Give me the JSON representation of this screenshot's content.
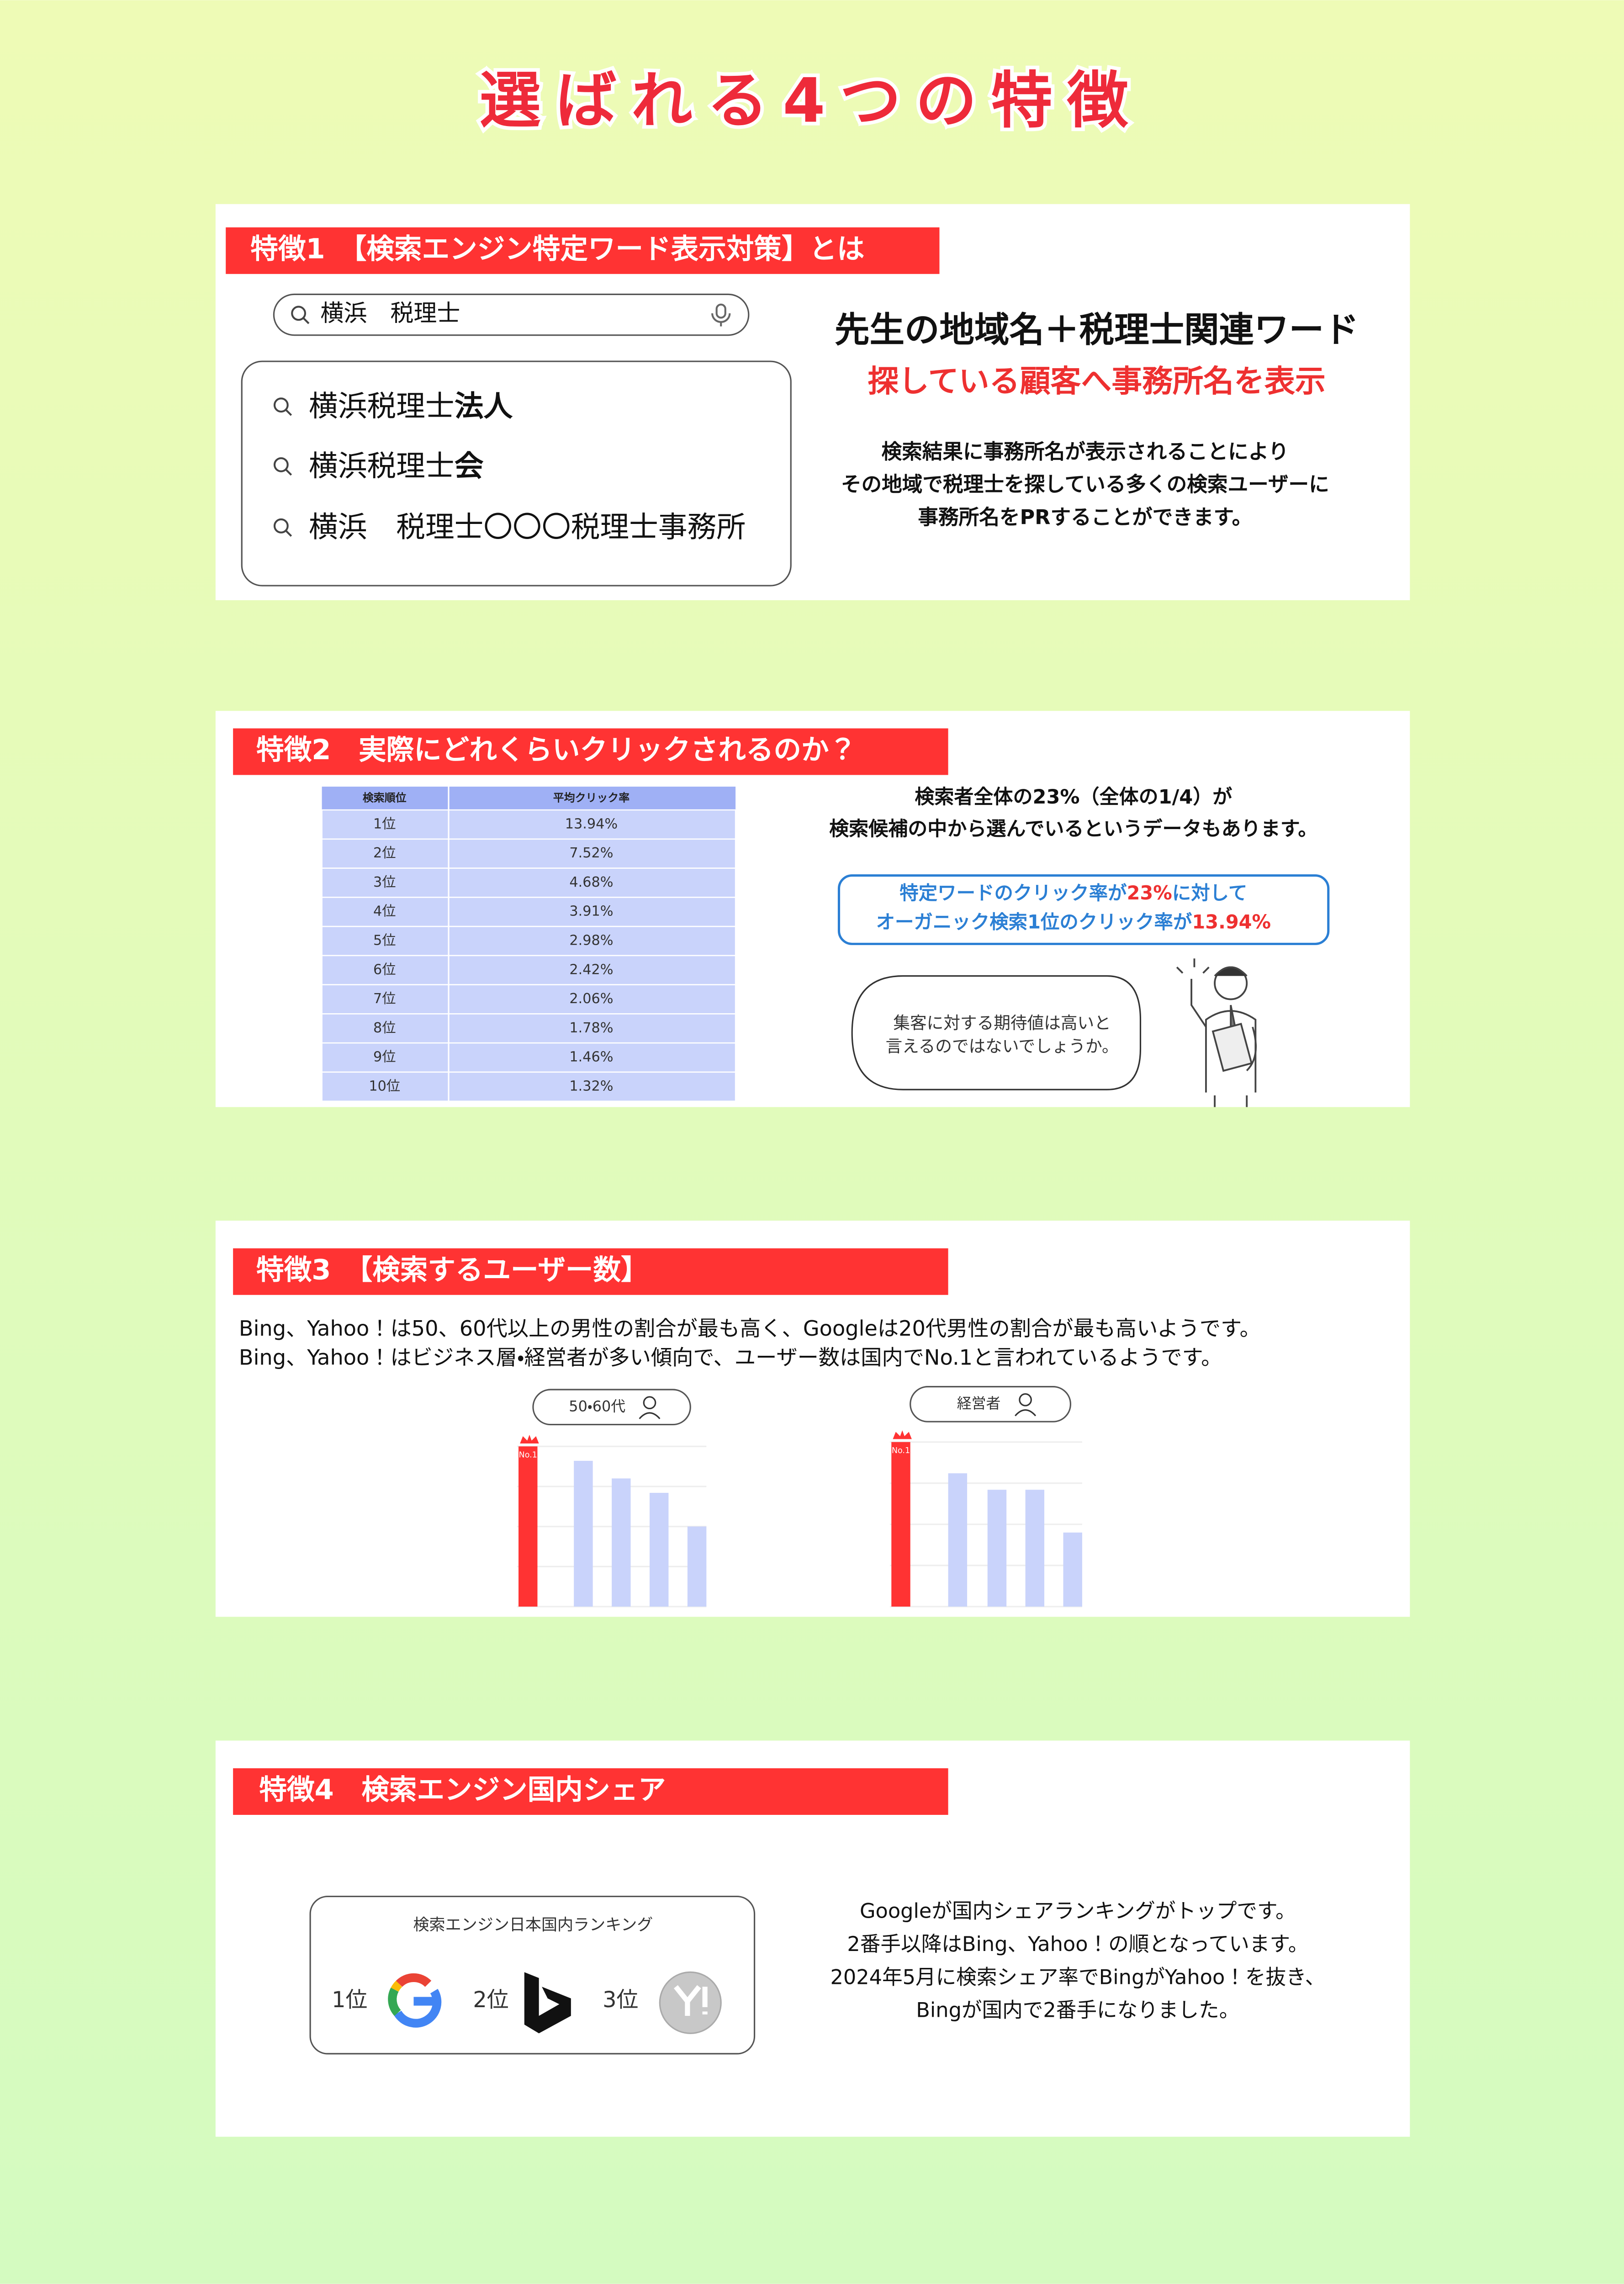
{
  "title": "選ばれる4つの特徴",
  "feature1": {
    "heading": "特徴1　【検索エンジン特定ワード表示対策】とは",
    "search_query": "横浜　税理士",
    "suggestions": [
      {
        "text": "横浜税理士",
        "bold": "法人"
      },
      {
        "text": "横浜税理士",
        "bold": "会"
      },
      {
        "text": "横浜　税理士〇〇〇税理士事務所"
      }
    ],
    "headline": "先生の地域名＋税理士関連ワード",
    "subheadline": "探している顧客へ事務所名を表示",
    "body": [
      "検索結果に事務所名が表示されることにより",
      "その地域で税理士を探している多くの検索ユーザーに",
      "事務所名をPRすることができます。"
    ]
  },
  "feature2": {
    "heading": "特徴2　実際にどれくらいクリックされるのか？",
    "table": {
      "header": [
        "検索順位",
        "平均クリック率"
      ],
      "rows": [
        [
          "1位",
          "13.94%"
        ],
        [
          "2位",
          "7.52%"
        ],
        [
          "3位",
          "4.68%"
        ],
        [
          "4位",
          "3.91%"
        ],
        [
          "5位",
          "2.98%"
        ],
        [
          "6位",
          "2.42%"
        ],
        [
          "7位",
          "2.06%"
        ],
        [
          "8位",
          "1.78%"
        ],
        [
          "9位",
          "1.46%"
        ],
        [
          "10位",
          "1.32%"
        ]
      ]
    },
    "summary": [
      "検索者全体の23%（全体の1/4）が",
      "検索候補の中から選んでいるというデータもあります。"
    ],
    "callout": [
      [
        {
          "text": "特定ワードのクリック率が",
          "color": "#2b7fd4"
        },
        {
          "text": "23%",
          "color": "#ee3030"
        },
        {
          "text": "に対して",
          "color": "#2b7fd4"
        }
      ],
      [
        {
          "text": "オーガニック検索1位のクリック率が",
          "color": "#2b7fd4"
        },
        {
          "text": "13.94%",
          "color": "#ee3030"
        }
      ]
    ],
    "speech": [
      "集客に対する期待値は高いと",
      "言えるのではないでしょうか。"
    ]
  },
  "feature3": {
    "heading": "特徴3　【検索するユーザー数】",
    "body": [
      "Bing、Yahoo！は50、60代以上の男性の割合が最も高く、Googleは20代男性の割合が最も高いようです。",
      "Bing、Yahoo！はビジネス層・経営者が多い傾向で、ユーザー数は国内でNo.1と言われているようです。"
    ],
    "charts": [
      {
        "type": "bar",
        "label": "50・60代",
        "top_label": "No.1",
        "values": [
          100,
          91,
          80,
          71,
          50
        ],
        "ylim": [
          0,
          100
        ],
        "highlight_color": "#ff3333",
        "color": "#c9d3fb"
      },
      {
        "type": "bar",
        "label": "経営者",
        "top_label": "No.1",
        "values": [
          100,
          81,
          71,
          71,
          45
        ],
        "ylim": [
          0,
          100
        ],
        "highlight_color": "#ff3333",
        "color": "#c9d3fb"
      }
    ]
  },
  "feature4": {
    "heading": "特徴4　検索エンジン国内シェア",
    "ranking_title": "検索エンジン日本国内ランキング",
    "ranks": [
      "1位",
      "2位",
      "3位"
    ],
    "body": [
      "Googleが国内シェアランキングがトップです。",
      "2番手以降はBing、Yahoo！の順となっています。",
      "2024年5月に検索シェア率でBingがYahoo！を抜き、",
      "Bingが国内で2番手になりました。"
    ]
  }
}
